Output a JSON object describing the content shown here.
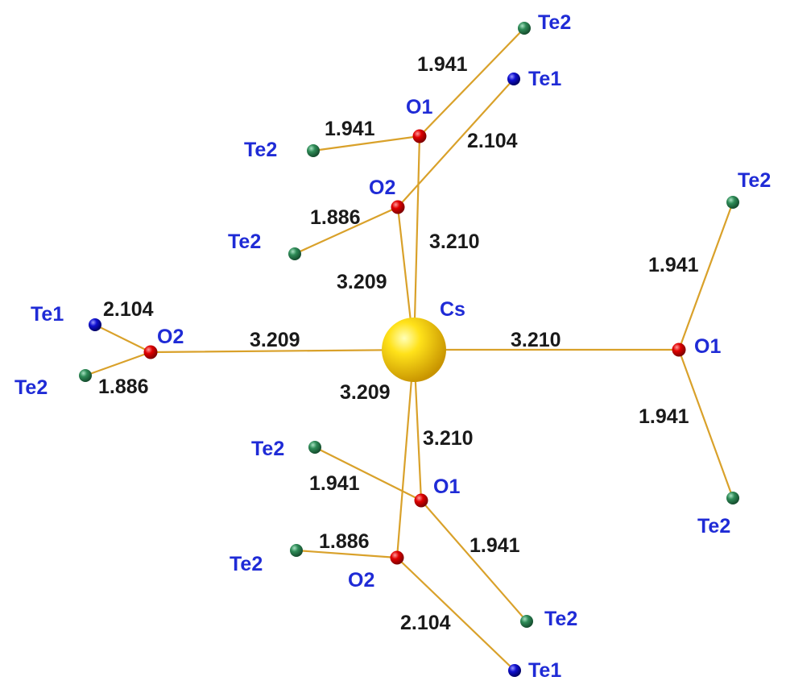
{
  "colors": {
    "Cs": "#f5c400",
    "O": "#e00000",
    "Te1": "#1010d0",
    "Te2": "#2e8b57",
    "bond": "#d9a12a",
    "atom_label": "#1f2bd6",
    "distance_label": "#1a1a1a"
  },
  "atoms": [
    {
      "id": "cs",
      "label": "Cs",
      "element": "Cs"
    },
    {
      "id": "o1_top",
      "label": "O1",
      "element": "O"
    },
    {
      "id": "o2_top",
      "label": "O2",
      "element": "O"
    },
    {
      "id": "o2_left",
      "label": "O2",
      "element": "O"
    },
    {
      "id": "o1_right",
      "label": "O1",
      "element": "O"
    },
    {
      "id": "o1_bottom",
      "label": "O1",
      "element": "O"
    },
    {
      "id": "o2_bottom",
      "label": "O2",
      "element": "O"
    },
    {
      "id": "te2_a",
      "label": "Te2",
      "element": "Te2"
    },
    {
      "id": "te1_a",
      "label": "Te1",
      "element": "Te1"
    },
    {
      "id": "te2_b",
      "label": "Te2",
      "element": "Te2"
    },
    {
      "id": "te2_c",
      "label": "Te2",
      "element": "Te2"
    },
    {
      "id": "te1_left",
      "label": "Te1",
      "element": "Te1"
    },
    {
      "id": "te2_left",
      "label": "Te2",
      "element": "Te2"
    },
    {
      "id": "te2_r1",
      "label": "Te2",
      "element": "Te2"
    },
    {
      "id": "te2_r2",
      "label": "Te2",
      "element": "Te2"
    },
    {
      "id": "te2_d",
      "label": "Te2",
      "element": "Te2"
    },
    {
      "id": "te2_e",
      "label": "Te2",
      "element": "Te2"
    },
    {
      "id": "te2_f",
      "label": "Te2",
      "element": "Te2"
    },
    {
      "id": "te1_bottom",
      "label": "Te1",
      "element": "Te1"
    }
  ],
  "bonds": [
    {
      "from": "cs",
      "to": "o1_top",
      "distance": "3.210"
    },
    {
      "from": "cs",
      "to": "o2_top",
      "distance": "3.209"
    },
    {
      "from": "cs",
      "to": "o2_left",
      "distance": "3.209"
    },
    {
      "from": "cs",
      "to": "o1_right",
      "distance": "3.210"
    },
    {
      "from": "cs",
      "to": "o1_bottom",
      "distance": "3.210"
    },
    {
      "from": "cs",
      "to": "o2_bottom",
      "distance": "3.209"
    },
    {
      "from": "o1_top",
      "to": "te2_a",
      "distance": "1.941"
    },
    {
      "from": "o1_top",
      "to": "te2_b",
      "distance": "1.941"
    },
    {
      "from": "o2_top",
      "to": "te1_a",
      "distance": "2.104"
    },
    {
      "from": "o2_top",
      "to": "te2_c",
      "distance": "1.886"
    },
    {
      "from": "o2_left",
      "to": "te1_left",
      "distance": "2.104"
    },
    {
      "from": "o2_left",
      "to": "te2_left",
      "distance": "1.886"
    },
    {
      "from": "o1_right",
      "to": "te2_r1",
      "distance": "1.941"
    },
    {
      "from": "o1_right",
      "to": "te2_r2",
      "distance": "1.941"
    },
    {
      "from": "o1_bottom",
      "to": "te2_d",
      "distance": "1.941"
    },
    {
      "from": "o1_bottom",
      "to": "te2_f",
      "distance": "1.941"
    },
    {
      "from": "o2_bottom",
      "to": "te2_e",
      "distance": "1.886"
    },
    {
      "from": "o2_bottom",
      "to": "te1_bottom",
      "distance": "2.104"
    }
  ]
}
